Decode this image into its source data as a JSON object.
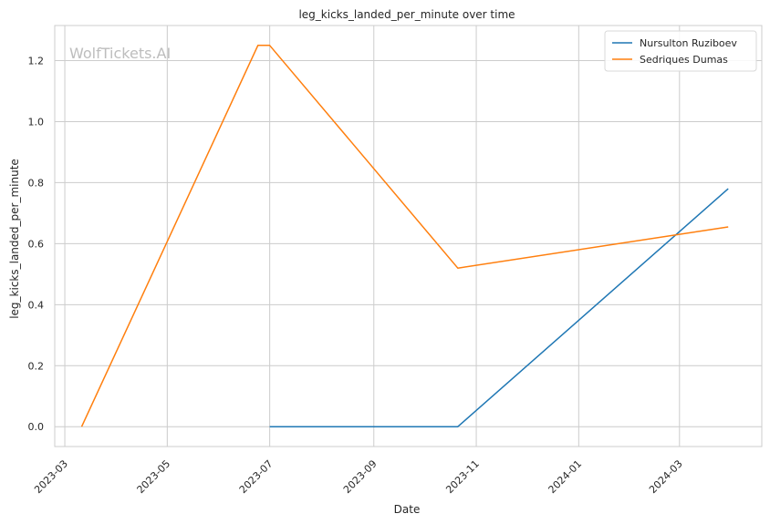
{
  "chart_data": {
    "type": "line",
    "title": "leg_kicks_landed_per_minute over time",
    "xlabel": "Date",
    "ylabel": "leg_kicks_landed_per_minute",
    "watermark": "WolfTickets.AI",
    "xlim": [
      "2023-02-23",
      "2024-04-19"
    ],
    "ylim": [
      -0.065,
      1.315
    ],
    "x_ticks": [
      {
        "date": "2023-03-01",
        "label": "2023-03"
      },
      {
        "date": "2023-05-01",
        "label": "2023-05"
      },
      {
        "date": "2023-07-01",
        "label": "2023-07"
      },
      {
        "date": "2023-09-01",
        "label": "2023-09"
      },
      {
        "date": "2023-11-01",
        "label": "2023-11"
      },
      {
        "date": "2024-01-01",
        "label": "2024-01"
      },
      {
        "date": "2024-03-01",
        "label": "2024-03"
      }
    ],
    "y_ticks": [
      {
        "value": 0.0,
        "label": "0.0"
      },
      {
        "value": 0.2,
        "label": "0.2"
      },
      {
        "value": 0.4,
        "label": "0.4"
      },
      {
        "value": 0.6,
        "label": "0.6"
      },
      {
        "value": 0.8,
        "label": "0.8"
      },
      {
        "value": 1.0,
        "label": "1.0"
      },
      {
        "value": 1.2,
        "label": "1.2"
      }
    ],
    "grid": true,
    "legend_position": "top-right",
    "series": [
      {
        "name": "Nursulton Ruziboev",
        "color": "#1f77b4",
        "points": [
          {
            "x": "2023-07-01",
            "y": 0.0
          },
          {
            "x": "2023-10-21",
            "y": 0.0
          },
          {
            "x": "2024-03-30",
            "y": 0.78
          }
        ]
      },
      {
        "name": "Sedriques Dumas",
        "color": "#ff7f0e",
        "points": [
          {
            "x": "2023-03-11",
            "y": 0.0
          },
          {
            "x": "2023-06-24",
            "y": 1.25
          },
          {
            "x": "2023-07-01",
            "y": 1.25
          },
          {
            "x": "2023-10-21",
            "y": 0.52
          },
          {
            "x": "2024-03-30",
            "y": 0.655
          }
        ]
      }
    ]
  }
}
